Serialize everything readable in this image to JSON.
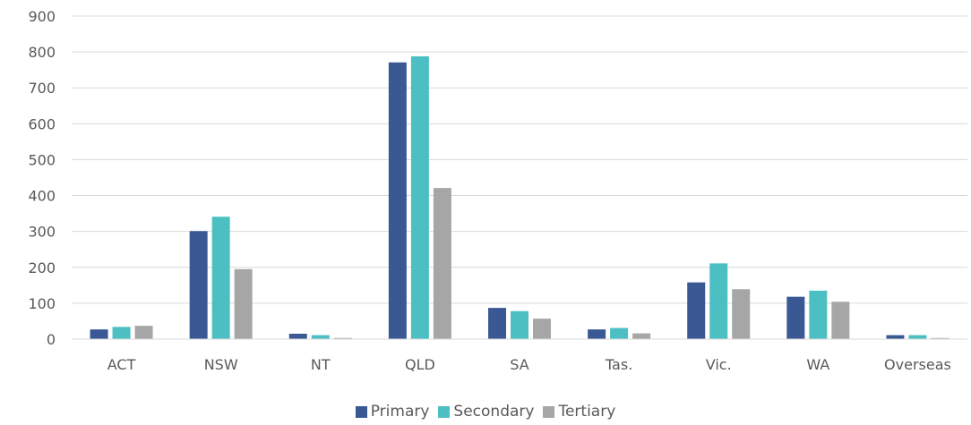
{
  "chart_data": {
    "type": "bar",
    "title": "",
    "xlabel": "",
    "ylabel": "",
    "categories": [
      "ACT",
      "NSW",
      "NT",
      "QLD",
      "SA",
      "Tas.",
      "Vic.",
      "WA",
      "Overseas"
    ],
    "ylim": [
      0,
      900
    ],
    "yticks": [
      0,
      100,
      200,
      300,
      400,
      500,
      600,
      700,
      800,
      900
    ],
    "grid": true,
    "legend_position": "bottom",
    "series": [
      {
        "name": "Primary",
        "color": "#3a5894",
        "values": [
          27,
          301,
          15,
          771,
          87,
          27,
          158,
          118,
          11
        ]
      },
      {
        "name": "Secondary",
        "color": "#4cbfc2",
        "values": [
          34,
          341,
          11,
          788,
          78,
          31,
          211,
          135,
          11
        ]
      },
      {
        "name": "Tertiary",
        "color": "#a6a6a6",
        "values": [
          37,
          195,
          3,
          421,
          57,
          16,
          139,
          104,
          3
        ]
      }
    ]
  }
}
